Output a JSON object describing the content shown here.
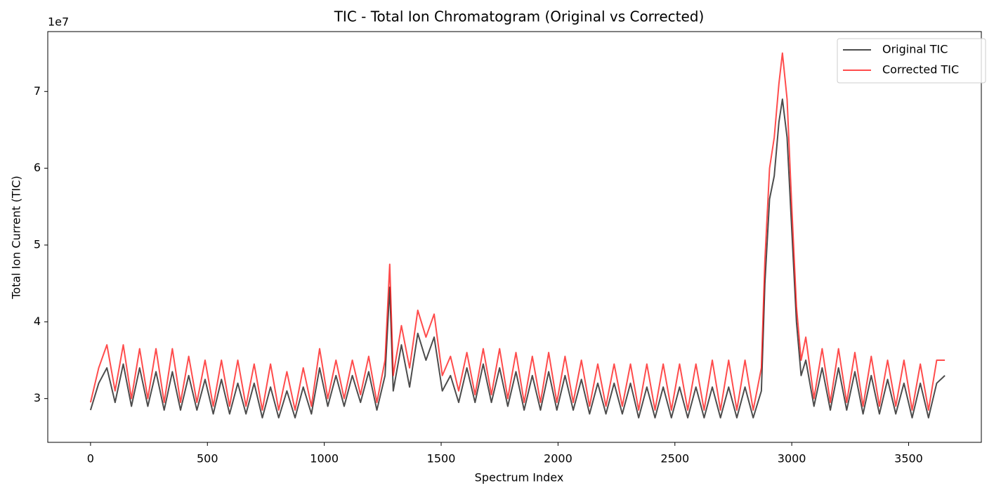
{
  "chart_data": {
    "type": "line",
    "title": "TIC - Total Ion Chromatogram (Original vs Corrected)",
    "x_label": "Spectrum Index",
    "y_label": "Total Ion Current (TIC)",
    "y_offset_label": "1e7",
    "x": [
      0,
      35,
      70,
      105,
      140,
      175,
      210,
      245,
      280,
      315,
      350,
      385,
      420,
      455,
      490,
      525,
      560,
      595,
      630,
      665,
      700,
      735,
      770,
      805,
      840,
      875,
      910,
      945,
      980,
      1015,
      1050,
      1085,
      1120,
      1155,
      1190,
      1225,
      1260,
      1280,
      1295,
      1330,
      1365,
      1400,
      1435,
      1470,
      1505,
      1540,
      1575,
      1610,
      1645,
      1680,
      1715,
      1750,
      1785,
      1820,
      1855,
      1890,
      1925,
      1960,
      1995,
      2030,
      2065,
      2100,
      2135,
      2170,
      2205,
      2240,
      2275,
      2310,
      2345,
      2380,
      2415,
      2450,
      2485,
      2520,
      2555,
      2590,
      2625,
      2660,
      2695,
      2730,
      2765,
      2800,
      2835,
      2870,
      2885,
      2905,
      2925,
      2945,
      2960,
      2980,
      3000,
      3020,
      3040,
      3060,
      3095,
      3130,
      3165,
      3200,
      3235,
      3270,
      3305,
      3340,
      3375,
      3410,
      3445,
      3480,
      3515,
      3550,
      3585,
      3620,
      3655
    ],
    "series": [
      {
        "name": "Original TIC",
        "color": "#000000",
        "alpha": 0.7,
        "values": [
          2.85,
          3.2,
          3.4,
          2.95,
          3.45,
          2.9,
          3.4,
          2.9,
          3.35,
          2.85,
          3.35,
          2.85,
          3.3,
          2.85,
          3.25,
          2.8,
          3.25,
          2.8,
          3.2,
          2.8,
          3.2,
          2.75,
          3.15,
          2.75,
          3.1,
          2.75,
          3.15,
          2.8,
          3.4,
          2.9,
          3.3,
          2.9,
          3.3,
          2.95,
          3.35,
          2.85,
          3.3,
          4.45,
          3.1,
          3.7,
          3.15,
          3.85,
          3.5,
          3.8,
          3.1,
          3.3,
          2.95,
          3.4,
          2.95,
          3.45,
          2.95,
          3.4,
          2.9,
          3.35,
          2.85,
          3.3,
          2.85,
          3.35,
          2.85,
          3.3,
          2.85,
          3.25,
          2.8,
          3.2,
          2.8,
          3.2,
          2.8,
          3.2,
          2.75,
          3.15,
          2.75,
          3.15,
          2.75,
          3.15,
          2.75,
          3.15,
          2.75,
          3.15,
          2.75,
          3.15,
          2.75,
          3.15,
          2.75,
          3.1,
          4.5,
          5.6,
          5.9,
          6.6,
          6.9,
          6.4,
          5.2,
          4.0,
          3.3,
          3.5,
          2.9,
          3.4,
          2.85,
          3.4,
          2.85,
          3.35,
          2.8,
          3.3,
          2.8,
          3.25,
          2.8,
          3.2,
          2.75,
          3.2,
          2.75,
          3.2,
          3.3
        ]
      },
      {
        "name": "Corrected TIC",
        "color": "#ff0000",
        "alpha": 0.7,
        "values": [
          2.95,
          3.4,
          3.7,
          3.1,
          3.7,
          3.0,
          3.65,
          3.0,
          3.65,
          2.95,
          3.65,
          2.95,
          3.55,
          2.95,
          3.5,
          2.9,
          3.5,
          2.9,
          3.5,
          2.9,
          3.45,
          2.85,
          3.45,
          2.85,
          3.35,
          2.85,
          3.4,
          2.9,
          3.65,
          3.0,
          3.5,
          3.0,
          3.5,
          3.05,
          3.55,
          2.95,
          3.5,
          4.75,
          3.3,
          3.95,
          3.4,
          4.15,
          3.8,
          4.1,
          3.3,
          3.55,
          3.1,
          3.6,
          3.05,
          3.65,
          3.05,
          3.65,
          3.0,
          3.6,
          2.95,
          3.55,
          2.95,
          3.6,
          2.95,
          3.55,
          2.95,
          3.5,
          2.9,
          3.45,
          2.9,
          3.45,
          2.9,
          3.45,
          2.85,
          3.45,
          2.85,
          3.45,
          2.85,
          3.45,
          2.85,
          3.45,
          2.85,
          3.5,
          2.85,
          3.5,
          2.85,
          3.5,
          2.85,
          3.4,
          4.8,
          6.0,
          6.4,
          7.1,
          7.5,
          6.9,
          5.5,
          4.2,
          3.5,
          3.8,
          3.0,
          3.65,
          2.95,
          3.65,
          2.95,
          3.6,
          2.9,
          3.55,
          2.9,
          3.5,
          2.9,
          3.5,
          2.85,
          3.45,
          2.85,
          3.5,
          3.5
        ]
      }
    ],
    "xlim": [
      -183,
      3811
    ],
    "ylim": [
      2.43,
      7.78
    ],
    "xticks": [
      0,
      500,
      1000,
      1500,
      2000,
      2500,
      3000,
      3500
    ],
    "yticks": [
      3,
      4,
      5,
      6,
      7
    ],
    "grid": false,
    "legend": "upper right"
  }
}
